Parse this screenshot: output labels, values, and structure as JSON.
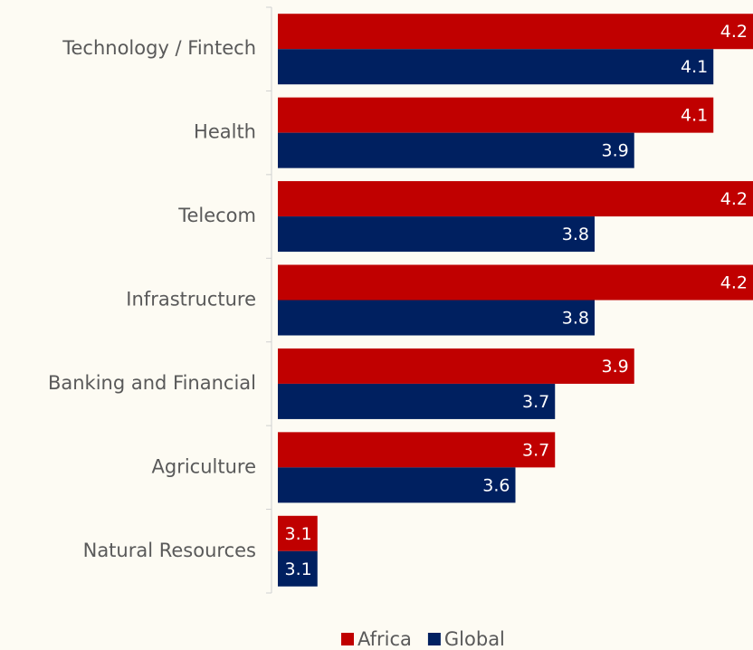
{
  "chart_data": {
    "type": "hbar",
    "categories": [
      "Technology / Fintech",
      "Health",
      "Telecom",
      "Infrastructure",
      "Banking and Financial",
      "Agriculture",
      "Natural Resources"
    ],
    "series": [
      {
        "name": "Africa",
        "color": "#c00000",
        "values": [
          4.2,
          4.1,
          4.2,
          4.2,
          3.9,
          3.7,
          3.1
        ]
      },
      {
        "name": "Global",
        "color": "#002060",
        "values": [
          4.1,
          3.9,
          3.8,
          3.8,
          3.7,
          3.6,
          3.1
        ]
      }
    ],
    "xlim": [
      3,
      4.2
    ],
    "legend": "bottom"
  }
}
